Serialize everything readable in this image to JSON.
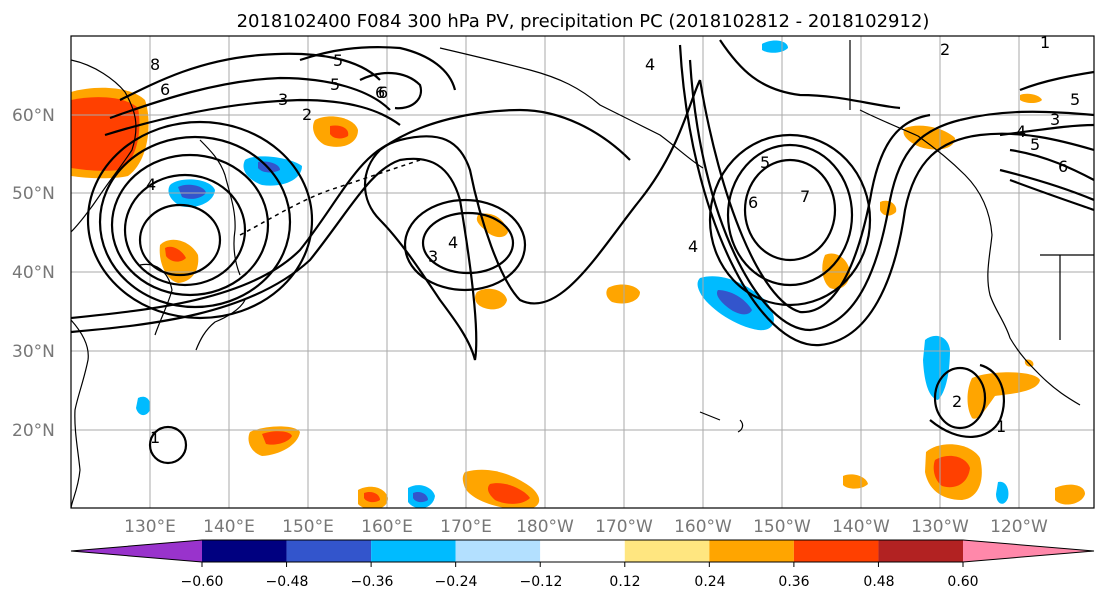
{
  "title": "2018102400 F084 300 hPa PV, precipitation PC (2018102812 - 2018102912)",
  "lat_labels": [
    "60°N",
    "50°N",
    "40°N",
    "30°N",
    "20°N"
  ],
  "lon_labels": [
    "130°E",
    "140°E",
    "150°E",
    "160°E",
    "170°E",
    "180°W",
    "170°W",
    "160°W",
    "150°W",
    "140°W",
    "130°W",
    "120°W"
  ],
  "colorbar": {
    "ticks": [
      "−0.60",
      "−0.48",
      "−0.36",
      "−0.24",
      "−0.12",
      "0.12",
      "0.24",
      "0.36",
      "0.48",
      "0.60"
    ],
    "colors": [
      "#9933cc",
      "#000080",
      "#3355cc",
      "#00bbff",
      "#b3e0ff",
      "#ffffff",
      "#ffe680",
      "#ffa500",
      "#ff4000",
      "#b22222",
      "#ff88aa"
    ]
  },
  "pv_contour_labels": [
    "8",
    "6",
    "4",
    "5",
    "3",
    "2",
    "6",
    "5",
    "4",
    "3",
    "4",
    "5",
    "6",
    "7",
    "6",
    "5",
    "4",
    "3",
    "2",
    "1",
    "4",
    "5",
    "6",
    "1",
    "2",
    "1"
  ]
}
